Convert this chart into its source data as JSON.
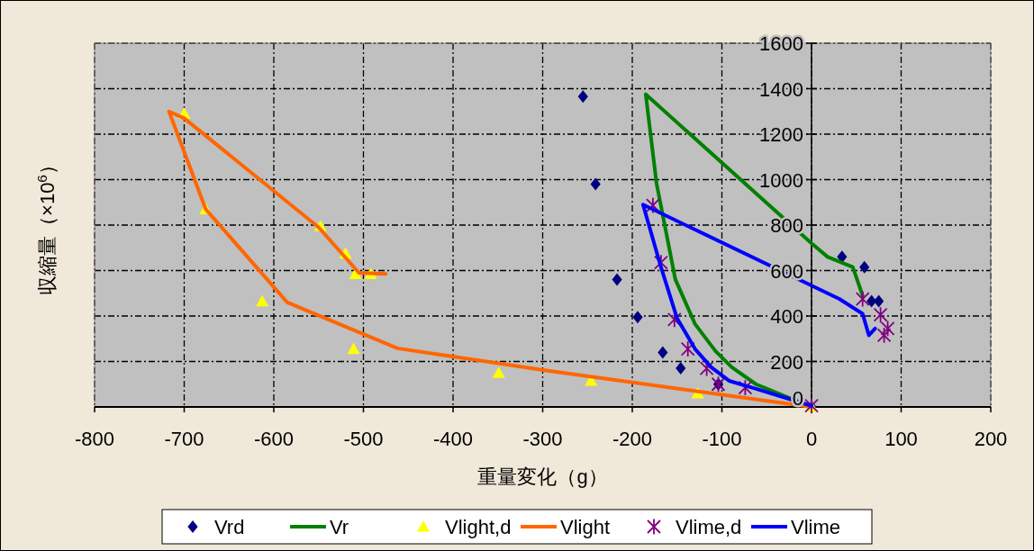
{
  "chart_data": {
    "type": "scatter",
    "xlabel": "重量変化（g）",
    "ylabel": "収縮量（×10$^{6}$）",
    "xlim": [
      -800,
      200
    ],
    "ylim": [
      0,
      1600
    ],
    "xticks": [
      -800,
      -700,
      -600,
      -500,
      -400,
      -300,
      -200,
      -100,
      0,
      100,
      200
    ],
    "yticks": [
      0,
      200,
      400,
      600,
      800,
      1000,
      1200,
      1400,
      1600
    ],
    "grid": true,
    "legend": "bottom",
    "series": [
      {
        "name": "Vrd",
        "marker": "diamond",
        "color": "#000080",
        "x": [
          -255,
          -241,
          -217,
          -194,
          -166,
          -146,
          -104,
          0,
          34,
          59,
          67,
          75
        ],
        "values": [
          1365,
          980,
          560,
          395,
          240,
          170,
          100,
          0,
          660,
          615,
          465,
          465
        ]
      },
      {
        "name": "Vr",
        "type": "line",
        "marker": "none",
        "line_style": "solid",
        "color": "#008000",
        "x": [
          0,
          -62,
          -89,
          -107,
          -130,
          -152,
          -173,
          -185,
          0,
          18,
          46,
          57
        ],
        "values": [
          0,
          100,
          175,
          245,
          365,
          562,
          985,
          1375,
          720,
          660,
          615,
          490
        ]
      },
      {
        "name": "Vlight,d",
        "marker": "triangle",
        "color": "#ffff00",
        "x": [
          -700,
          -676,
          -613,
          -548,
          -520,
          -509,
          -492,
          -511,
          -349,
          -246,
          -127,
          0
        ],
        "values": [
          1290,
          870,
          465,
          795,
          675,
          585,
          585,
          255,
          150,
          115,
          60,
          0
        ]
      },
      {
        "name": "Vlight",
        "type": "line",
        "marker": "none",
        "line_style": "solid",
        "color": "#ff6600",
        "x": [
          0,
          -296,
          -462,
          -585,
          -676,
          -717,
          -700,
          -550,
          -505,
          -475
        ],
        "values": [
          0,
          160,
          258,
          460,
          870,
          1300,
          1270,
          790,
          590,
          585
        ]
      },
      {
        "name": "Vlime,d",
        "marker": "cross",
        "color": "#800080",
        "x": [
          -177,
          -168,
          -153,
          -138,
          -117,
          -104,
          -74,
          0,
          57,
          77,
          85,
          81
        ],
        "values": [
          887,
          635,
          385,
          255,
          170,
          100,
          85,
          5,
          475,
          405,
          345,
          315
        ]
      },
      {
        "name": "Vlime",
        "type": "line",
        "marker": "none",
        "line_style": "solid",
        "color": "#0000ff",
        "x": [
          0,
          -66,
          -92,
          -112,
          -130,
          -150,
          -168,
          -188,
          31,
          57,
          64,
          71
        ],
        "values": [
          5,
          85,
          115,
          175,
          255,
          390,
          615,
          890,
          475,
          410,
          315,
          345
        ]
      }
    ]
  }
}
